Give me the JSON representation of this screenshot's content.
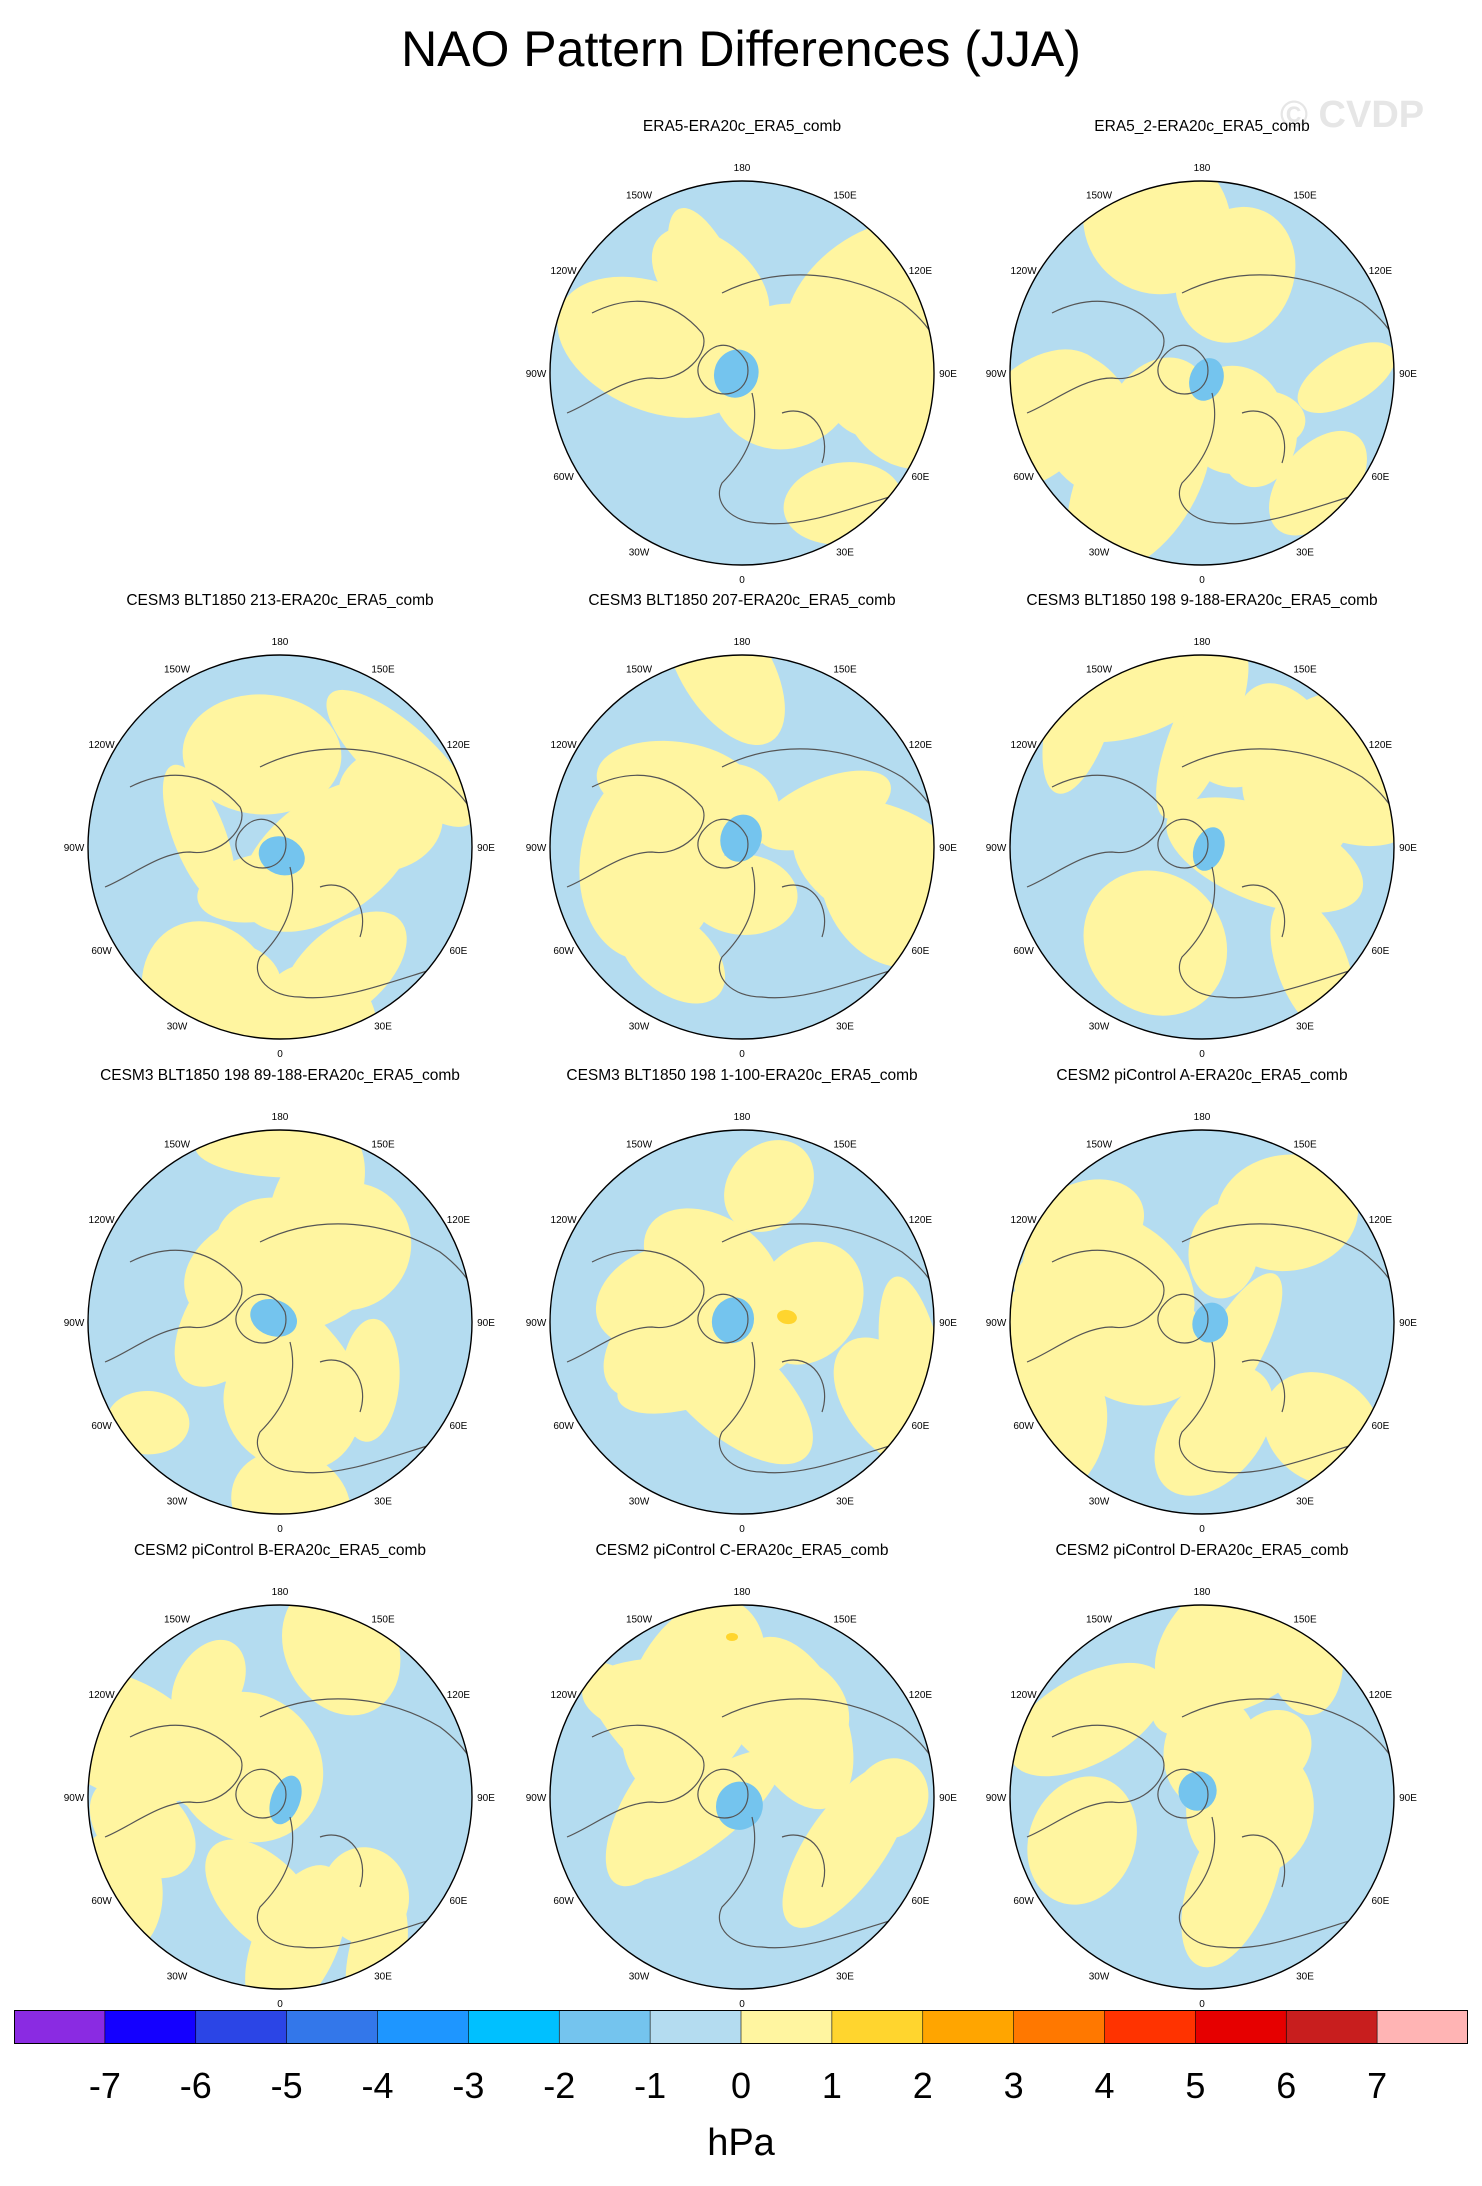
{
  "title": "NAO Pattern Differences (JJA)",
  "watermark": "© CVDP",
  "colors": {
    "land_outline": "#555555",
    "panel_border": "#000000",
    "zero_light_blue": "#b4dcf0",
    "light_yellow": "#fff5a0",
    "blue_contour": "#74c4ee",
    "yellow_contour": "#ffd52e"
  },
  "longitude_labels": [
    "180",
    "150E",
    "120E",
    "90E",
    "60E",
    "30E",
    "0",
    "30W",
    "60W",
    "90W",
    "120W",
    "150W"
  ],
  "panels": [
    {
      "title": "ERA5-ERA20c_ERA5_comb",
      "yellow_frac": 0.42
    },
    {
      "title": "ERA5_2-ERA20c_ERA5_comb",
      "yellow_frac": 0.48
    },
    {
      "title": "CESM3 BLT1850 213-ERA20c_ERA5_comb",
      "yellow_frac": 0.45
    },
    {
      "title": "CESM3 BLT1850 207-ERA20c_ERA5_comb",
      "yellow_frac": 0.44
    },
    {
      "title": "CESM3 BLT1850 198 9-188-ERA20c_ERA5_comb",
      "yellow_frac": 0.4
    },
    {
      "title": "CESM3 BLT1850 198 89-188-ERA20c_ERA5_comb",
      "yellow_frac": 0.46
    },
    {
      "title": "CESM3 BLT1850 198 1-100-ERA20c_ERA5_comb",
      "yellow_frac": 0.5
    },
    {
      "title": "CESM2 piControl A-ERA20c_ERA5_comb",
      "yellow_frac": 0.47
    },
    {
      "title": "CESM2 piControl B-ERA20c_ERA5_comb",
      "yellow_frac": 0.52
    },
    {
      "title": "CESM2 piControl C-ERA20c_ERA5_comb",
      "yellow_frac": 0.43
    },
    {
      "title": "CESM2 piControl D-ERA20c_ERA5_comb",
      "yellow_frac": 0.41
    }
  ],
  "colorbar": {
    "unit": "hPa",
    "labels": [
      "-7",
      "-6",
      "-5",
      "-4",
      "-3",
      "-2",
      "-1",
      "0",
      "1",
      "2",
      "3",
      "4",
      "5",
      "6",
      "7"
    ],
    "colors": [
      "#8a2be2",
      "#1400ff",
      "#2b45e6",
      "#3377ea",
      "#1e96ff",
      "#00c0ff",
      "#74c4ee",
      "#b4dcf0",
      "#fff5a0",
      "#ffd52e",
      "#ffa500",
      "#ff7800",
      "#ff3300",
      "#e60000",
      "#c81e1e",
      "#ffb4b4"
    ]
  }
}
